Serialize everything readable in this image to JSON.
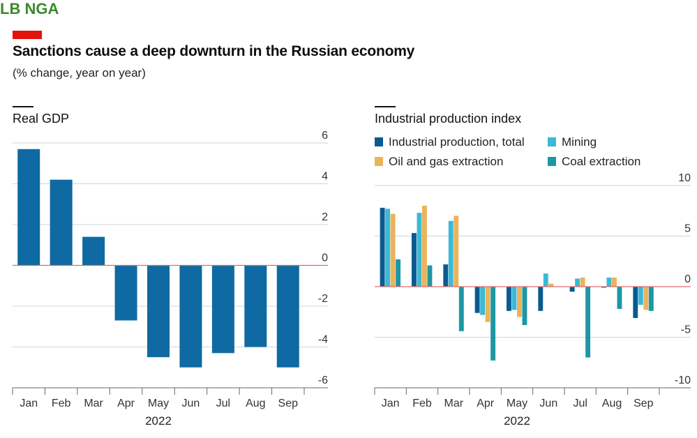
{
  "watermark": "LB NGA",
  "header": {
    "title": "Sanctions cause a deep downturn in the Russian economy",
    "subtitle": "(% change, year on year)"
  },
  "colors": {
    "accent_red": "#e3120b",
    "gdp_bar": "#0f6aa3",
    "industrial_total": "#0b5a8f",
    "mining": "#3bb9d6",
    "oil_gas": "#ebb35a",
    "coal": "#1d97a4",
    "gridline": "#c9d6df",
    "zero_line": "#e06a6a"
  },
  "chart_data": [
    {
      "type": "bar",
      "title": "Real GDP",
      "categories": [
        "Jan",
        "Feb",
        "Mar",
        "Apr",
        "May",
        "Jun",
        "Jul",
        "Aug",
        "Sep"
      ],
      "values": [
        5.7,
        4.2,
        1.4,
        -2.7,
        -4.5,
        -5.0,
        -4.3,
        -4.0,
        -5.0
      ],
      "year_label": "2022",
      "ylim": [
        -6,
        6
      ],
      "yticks": [
        "6",
        "4",
        "2",
        "0",
        "-2",
        "-4",
        "-6"
      ],
      "ytick_values": [
        6,
        4,
        2,
        0,
        -2,
        -4,
        -6
      ],
      "grid": true,
      "yaxis_side": "right"
    },
    {
      "type": "bar",
      "title": "Industrial production index",
      "categories": [
        "Jan",
        "Feb",
        "Mar",
        "Apr",
        "May",
        "Jun",
        "Jul",
        "Aug",
        "Sep"
      ],
      "series": [
        {
          "name": "Industrial production, total",
          "values": [
            7.8,
            5.3,
            2.2,
            -2.6,
            -2.4,
            -2.4,
            -0.5,
            -0.1,
            -3.1
          ],
          "color": "industrial_total"
        },
        {
          "name": "Mining",
          "values": [
            7.7,
            7.3,
            6.5,
            -2.8,
            -2.3,
            1.3,
            0.8,
            0.9,
            -1.8
          ],
          "color": "mining"
        },
        {
          "name": "Oil and gas extraction",
          "values": [
            7.2,
            8.0,
            7.0,
            -3.5,
            -3.0,
            0.3,
            0.9,
            0.9,
            -2.3
          ],
          "color": "oil_gas"
        },
        {
          "name": "Coal extraction",
          "values": [
            2.7,
            2.1,
            -4.4,
            -7.3,
            -3.8,
            0,
            -7.0,
            -2.2,
            -2.4
          ],
          "color": "coal"
        }
      ],
      "year_label": "2022",
      "ylim": [
        -10,
        10
      ],
      "yticks": [
        "10",
        "5",
        "0",
        "-5",
        "-10"
      ],
      "ytick_values": [
        10,
        5,
        0,
        -5,
        -10
      ],
      "grid": true,
      "yaxis_side": "right",
      "legend_position": "top"
    }
  ]
}
